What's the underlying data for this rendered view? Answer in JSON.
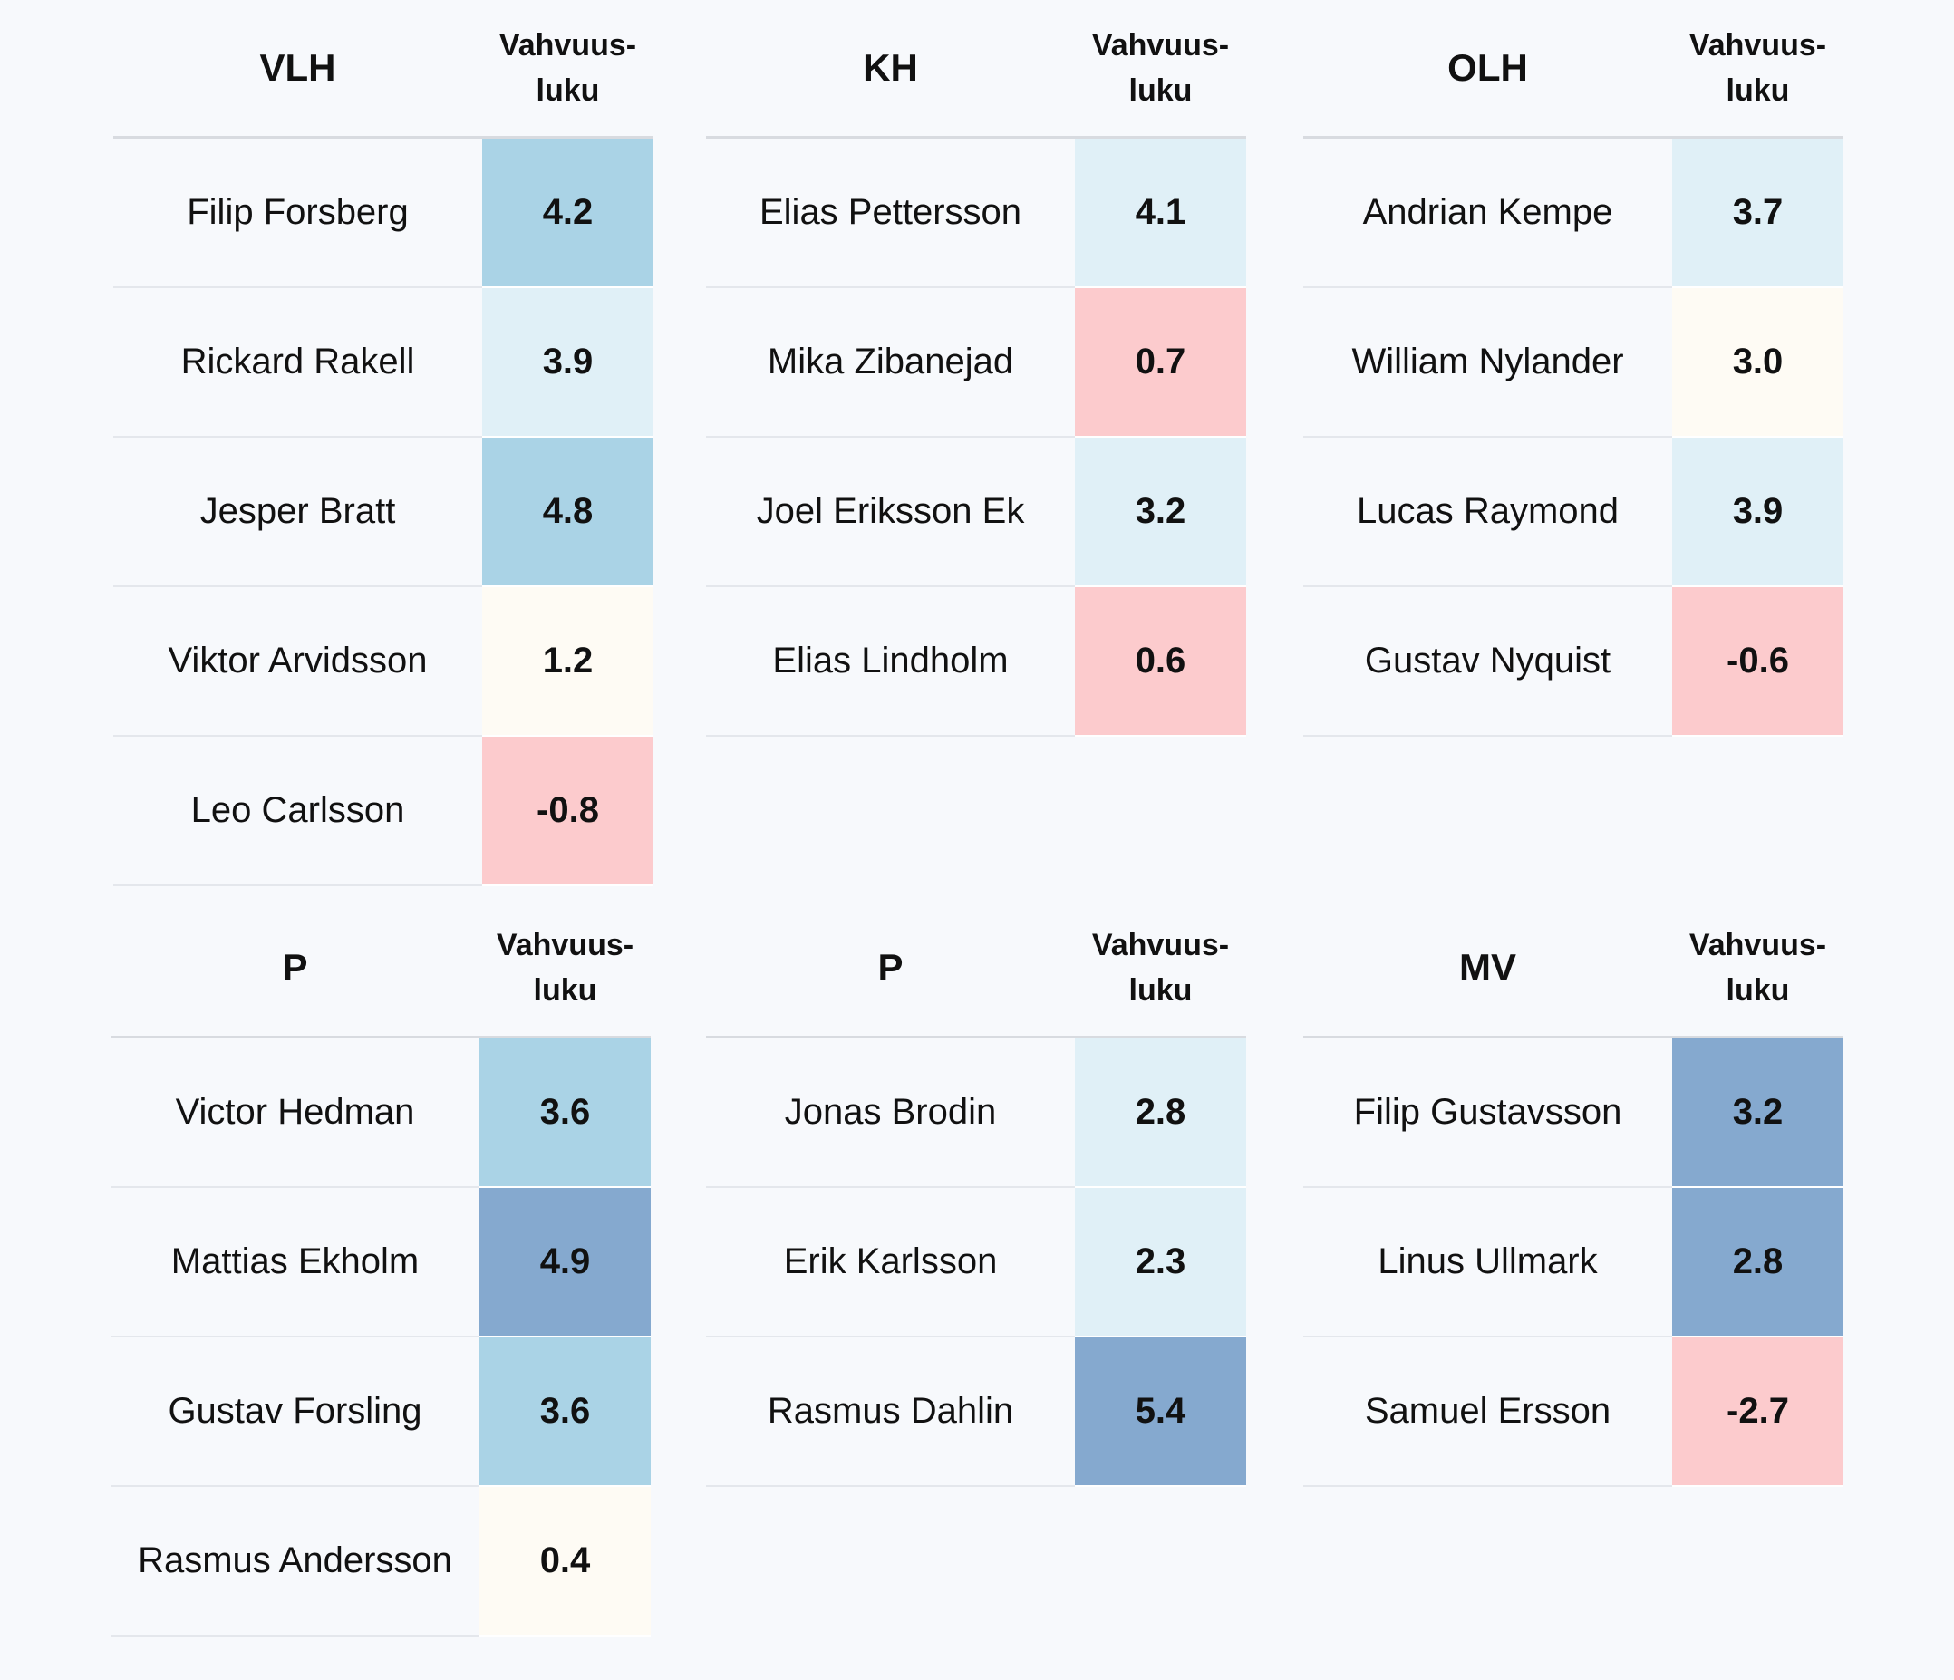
{
  "tables": [
    {
      "position": "VLH",
      "value_header_line1": "Vahvuus-",
      "value_header_line2": "luku",
      "rows": [
        {
          "name": "Filip Forsberg",
          "value": "4.2",
          "color": "#aad3e6"
        },
        {
          "name": "Rickard Rakell",
          "value": "3.9",
          "color": "#e0f0f7"
        },
        {
          "name": "Jesper Bratt",
          "value": "4.8",
          "color": "#aad3e6"
        },
        {
          "name": "Viktor Arvidsson",
          "value": "1.2",
          "color": "#fefbf4"
        },
        {
          "name": "Leo Carlsson",
          "value": "-0.8",
          "color": "#fccbcd"
        }
      ]
    },
    {
      "position": "KH",
      "value_header_line1": "Vahvuus-",
      "value_header_line2": "luku",
      "rows": [
        {
          "name": "Elias Pettersson",
          "value": "4.1",
          "color": "#e0f0f7"
        },
        {
          "name": "Mika Zibanejad",
          "value": "0.7",
          "color": "#fccbcd"
        },
        {
          "name": "Joel Eriksson Ek",
          "value": "3.2",
          "color": "#e0f0f7"
        },
        {
          "name": "Elias Lindholm",
          "value": "0.6",
          "color": "#fccbcd"
        }
      ]
    },
    {
      "position": "OLH",
      "value_header_line1": "Vahvuus-",
      "value_header_line2": "luku",
      "rows": [
        {
          "name": "Andrian Kempe",
          "value": "3.7",
          "color": "#e0f0f7"
        },
        {
          "name": "William Nylander",
          "value": "3.0",
          "color": "#fefbf4"
        },
        {
          "name": "Lucas Raymond",
          "value": "3.9",
          "color": "#e0f0f7"
        },
        {
          "name": "Gustav Nyquist",
          "value": "-0.6",
          "color": "#fccbcd"
        }
      ]
    },
    {
      "position": "P",
      "value_header_line1": "Vahvuus-",
      "value_header_line2": "luku",
      "rows": [
        {
          "name": "Victor Hedman",
          "value": "3.6",
          "color": "#aad3e6"
        },
        {
          "name": "Mattias Ekholm",
          "value": "4.9",
          "color": "#85a9cf"
        },
        {
          "name": "Gustav Forsling",
          "value": "3.6",
          "color": "#aad3e6"
        },
        {
          "name": "Rasmus Andersson",
          "value": "0.4",
          "color": "#fefbf4"
        }
      ]
    },
    {
      "position": "P",
      "value_header_line1": "Vahvuus-",
      "value_header_line2": "luku",
      "rows": [
        {
          "name": "Jonas Brodin",
          "value": "2.8",
          "color": "#e0f0f7"
        },
        {
          "name": "Erik Karlsson",
          "value": "2.3",
          "color": "#e0f0f7"
        },
        {
          "name": "Rasmus Dahlin",
          "value": "5.4",
          "color": "#85a9cf"
        }
      ]
    },
    {
      "position": "MV",
      "value_header_line1": "Vahvuus-",
      "value_header_line2": "luku",
      "rows": [
        {
          "name": "Filip Gustavsson",
          "value": "3.2",
          "color": "#85a9cf"
        },
        {
          "name": "Linus Ullmark",
          "value": "2.8",
          "color": "#85a9cf"
        },
        {
          "name": "Samuel Ersson",
          "value": "-2.7",
          "color": "#fccbcd"
        }
      ]
    }
  ]
}
